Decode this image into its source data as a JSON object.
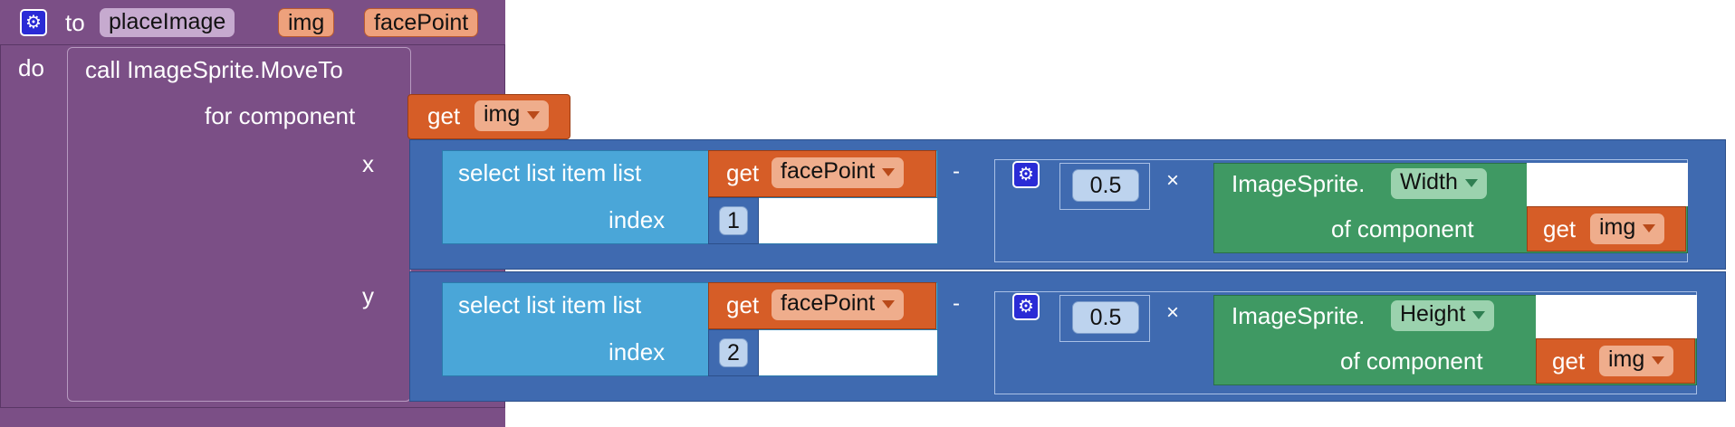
{
  "procedure": {
    "keyword_to": "to",
    "name": "placeImage",
    "params": [
      "img",
      "facePoint"
    ],
    "keyword_do": "do"
  },
  "call": {
    "label": "call ImageSprite.MoveTo",
    "component_label": "for component",
    "x_label": "x",
    "y_label": "y"
  },
  "get_img": {
    "keyword": "get",
    "var": "img"
  },
  "x_expr": {
    "list_label": "select list item  list",
    "index_label": "index",
    "get_keyword": "get",
    "list_var": "facePoint",
    "index_value": "1",
    "minus": "-",
    "factor": "0.5",
    "times": "×",
    "sprite_label": "ImageSprite.",
    "property": "Width",
    "of_component": "of component",
    "comp_get": "get",
    "comp_var": "img"
  },
  "y_expr": {
    "list_label": "select list item  list",
    "index_label": "index",
    "get_keyword": "get",
    "list_var": "facePoint",
    "index_value": "2",
    "minus": "-",
    "factor": "0.5",
    "times": "×",
    "sprite_label": "ImageSprite.",
    "property": "Height",
    "of_component": "of component",
    "comp_get": "get",
    "comp_var": "img"
  },
  "icons": {
    "mutator": "gear-icon",
    "dropdown": "chevron-down-icon"
  },
  "colors": {
    "procedure": "#7b4f86",
    "math": "#3f6ab0",
    "list": "#4aa6d8",
    "variable_get": "#d65d27",
    "component": "#3f9963",
    "mutator": "#2a2bd6"
  }
}
